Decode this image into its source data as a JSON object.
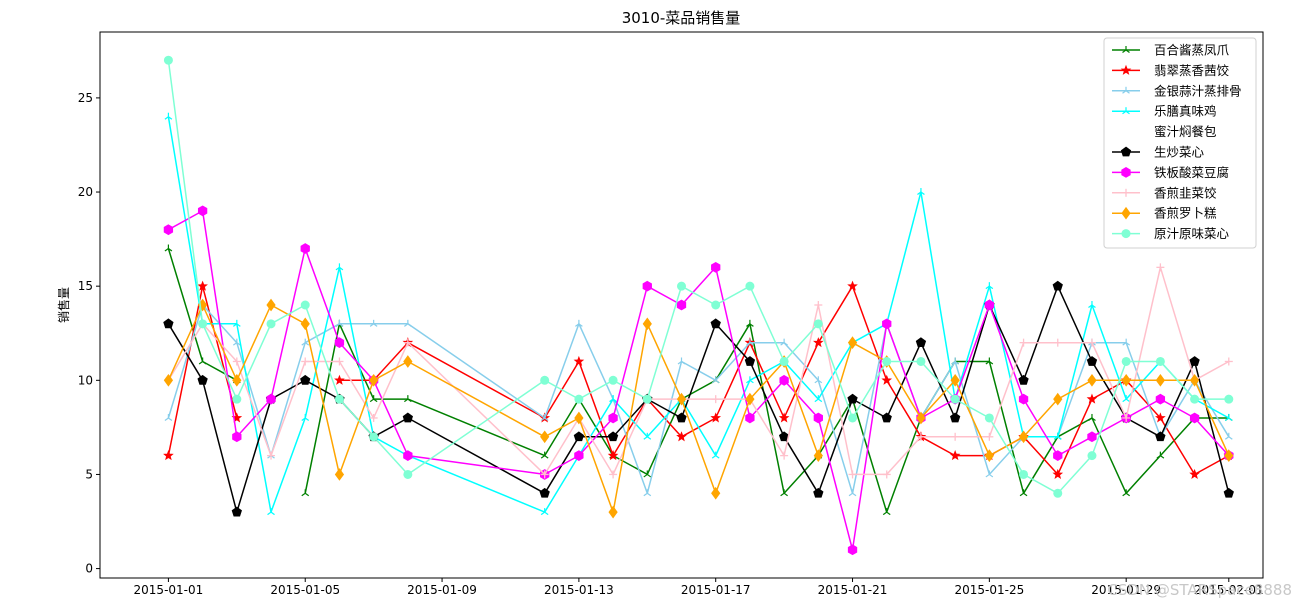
{
  "watermark": "CSDN @STARSpace8888",
  "chart_data": {
    "type": "line",
    "title": "3010-菜品销售量",
    "xlabel": "",
    "ylabel": "销售量",
    "ylim": [
      -0.5,
      28.5
    ],
    "xlim": [
      "2014-12-30",
      "2015-02-02"
    ],
    "yticks": [
      0,
      5,
      10,
      15,
      20,
      25
    ],
    "xticks": [
      "2015-01-01",
      "2015-01-05",
      "2015-01-09",
      "2015-01-13",
      "2015-01-17",
      "2015-01-21",
      "2015-01-25",
      "2015-01-29",
      "2015-02-01"
    ],
    "grid": false,
    "legend_position": "top-right",
    "x": [
      "2015-01-01",
      "2015-01-02",
      "2015-01-03",
      "2015-01-04",
      "2015-01-05",
      "2015-01-06",
      "2015-01-07",
      "2015-01-08",
      "2015-01-12",
      "2015-01-13",
      "2015-01-14",
      "2015-01-15",
      "2015-01-16",
      "2015-01-17",
      "2015-01-18",
      "2015-01-19",
      "2015-01-20",
      "2015-01-21",
      "2015-01-22",
      "2015-01-23",
      "2015-01-24",
      "2015-01-25",
      "2015-01-26",
      "2015-01-27",
      "2015-01-28",
      "2015-01-29",
      "2015-01-30",
      "2015-01-31",
      "2015-02-01"
    ],
    "series": [
      {
        "name": "百合酱蒸凤爪",
        "color": "#008000",
        "marker": "tri",
        "values": [
          17,
          11,
          10,
          null,
          4,
          13,
          9,
          9,
          6,
          9,
          6,
          5,
          9,
          10,
          13,
          4,
          6,
          9,
          3,
          8,
          11,
          11,
          4,
          7,
          8,
          4,
          6,
          8,
          8
        ]
      },
      {
        "name": "翡翠蒸香茜饺",
        "color": "#ff0000",
        "marker": "star",
        "values": [
          6,
          15,
          8,
          null,
          null,
          10,
          10,
          12,
          8,
          11,
          6,
          9,
          7,
          8,
          12,
          8,
          12,
          15,
          10,
          7,
          6,
          6,
          7,
          5,
          9,
          10,
          8,
          5,
          6
        ]
      },
      {
        "name": "金银蒜汁蒸排骨",
        "color": "#87ceeb",
        "marker": "tri",
        "values": [
          8,
          14,
          12,
          6,
          12,
          13,
          13,
          13,
          8,
          13,
          9,
          4,
          11,
          10,
          12,
          12,
          10,
          4,
          13,
          8,
          11,
          5,
          7,
          7,
          12,
          12,
          7,
          10,
          7
        ]
      },
      {
        "name": "乐膳真味鸡",
        "color": "#00ffff",
        "marker": "tri",
        "values": [
          24,
          13,
          13,
          3,
          8,
          16,
          7,
          6,
          3,
          6,
          9,
          7,
          9,
          6,
          10,
          11,
          9,
          12,
          13,
          20,
          9,
          15,
          7,
          7,
          14,
          9,
          11,
          9,
          8
        ]
      },
      {
        "name": "蜜汁焖餐包",
        "color": "#ffffff",
        "marker": "none",
        "values": [
          null,
          null,
          null,
          null,
          null,
          null,
          null,
          null,
          null,
          null,
          null,
          null,
          null,
          null,
          null,
          null,
          null,
          null,
          null,
          null,
          null,
          null,
          null,
          null,
          null,
          null,
          null,
          null,
          null
        ]
      },
      {
        "name": "生炒菜心",
        "color": "#000000",
        "marker": "pentagon",
        "values": [
          13,
          10,
          3,
          9,
          10,
          9,
          7,
          8,
          4,
          7,
          7,
          9,
          8,
          13,
          11,
          7,
          4,
          9,
          8,
          12,
          8,
          14,
          10,
          15,
          11,
          8,
          7,
          11,
          4
        ]
      },
      {
        "name": "铁板酸菜豆腐",
        "color": "#ff00ff",
        "marker": "hexagon",
        "values": [
          18,
          19,
          7,
          9,
          17,
          12,
          10,
          6,
          5,
          6,
          8,
          15,
          14,
          16,
          8,
          10,
          8,
          1,
          13,
          8,
          9,
          14,
          9,
          6,
          7,
          8,
          9,
          8,
          6
        ]
      },
      {
        "name": "香煎韭菜饺",
        "color": "#ffc0cb",
        "marker": "plus",
        "values": [
          10,
          13,
          11,
          6,
          11,
          11,
          8,
          12,
          5,
          8,
          5,
          9,
          9,
          9,
          9,
          6,
          14,
          5,
          5,
          7,
          7,
          7,
          12,
          12,
          12,
          8,
          16,
          10,
          11
        ]
      },
      {
        "name": "香煎罗卜糕",
        "color": "#ffa500",
        "marker": "diamond",
        "values": [
          10,
          14,
          10,
          14,
          13,
          5,
          10,
          11,
          7,
          8,
          3,
          13,
          9,
          4,
          9,
          11,
          6,
          12,
          11,
          8,
          10,
          6,
          7,
          9,
          10,
          10,
          10,
          10,
          6
        ]
      },
      {
        "name": "原汁原味菜心",
        "color": "#7fffd4",
        "marker": "circle",
        "values": [
          27,
          13,
          9,
          13,
          14,
          9,
          7,
          5,
          10,
          9,
          10,
          9,
          15,
          14,
          15,
          11,
          13,
          8,
          11,
          11,
          9,
          8,
          5,
          4,
          6,
          11,
          11,
          9,
          9
        ]
      }
    ]
  }
}
